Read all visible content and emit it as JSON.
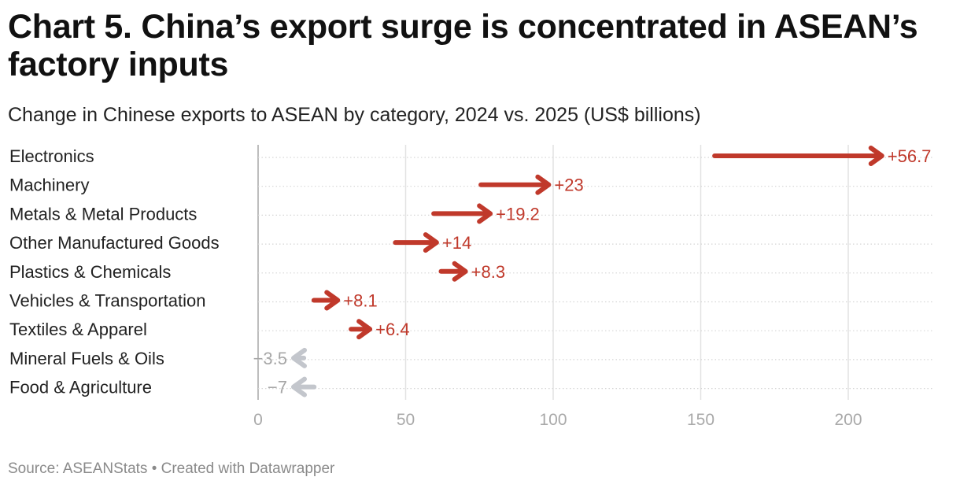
{
  "header": {
    "title": "Chart 5. China’s export surge is concentrated in ASEAN’s factory inputs",
    "subtitle": "Change in Chinese exports to ASEAN by category, 2024 vs. 2025 (US$ billions)"
  },
  "footer": {
    "source": "Source: ASEANStats • Created with Datawrapper"
  },
  "chart_data": {
    "type": "arrow",
    "title": "Chart 5. China’s export surge is concentrated in ASEAN’s factory inputs",
    "subtitle": "Change in Chinese exports to ASEAN by category, 2024 vs. 2025 (US$ billions)",
    "xlim": [
      0,
      230
    ],
    "x_ticks": [
      0,
      50,
      100,
      150,
      200
    ],
    "grid": true,
    "colors": {
      "increase": "#c0392b",
      "decrease": "#c3c6cc"
    },
    "rows": [
      {
        "category": "Electronics",
        "from": 154.7,
        "to": 211.4,
        "change": 56.7,
        "label": "+56.7"
      },
      {
        "category": "Machinery",
        "from": 75.5,
        "to": 98.5,
        "change": 23,
        "label": "+23"
      },
      {
        "category": "Metals & Metal Products",
        "from": 59.5,
        "to": 78.7,
        "change": 19.2,
        "label": "+19.2"
      },
      {
        "category": "Other Manufactured Goods",
        "from": 46.5,
        "to": 60.5,
        "change": 14,
        "label": "+14"
      },
      {
        "category": "Plastics & Chemicals",
        "from": 62.0,
        "to": 70.3,
        "change": 8.3,
        "label": "+8.3"
      },
      {
        "category": "Vehicles & Transportation",
        "from": 18.9,
        "to": 27.0,
        "change": 8.1,
        "label": "+8.1"
      },
      {
        "category": "Textiles & Apparel",
        "from": 31.5,
        "to": 37.9,
        "change": 6.4,
        "label": "+6.4"
      },
      {
        "category": "Mineral Fuels & Oils",
        "from": 15.5,
        "to": 12.0,
        "change": -3.5,
        "label": "−3.5"
      },
      {
        "category": "Food & Agriculture",
        "from": 19.0,
        "to": 12.0,
        "change": -7,
        "label": "−7"
      }
    ]
  }
}
